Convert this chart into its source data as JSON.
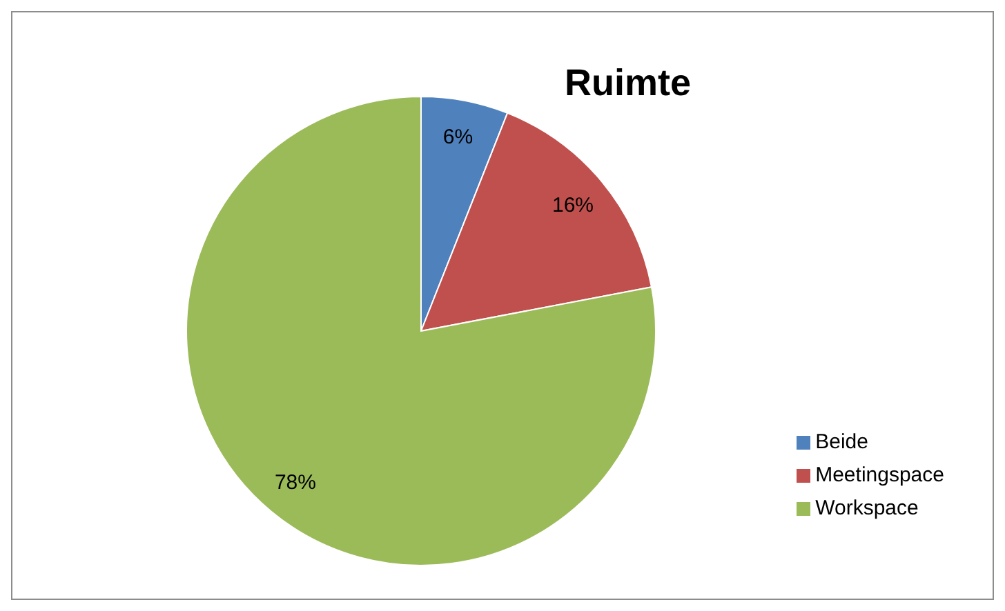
{
  "chart_data": {
    "type": "pie",
    "title": "Ruimte",
    "categories": [
      "Beide",
      "Meetingspace",
      "Workspace"
    ],
    "values": [
      6,
      16,
      78
    ],
    "value_labels": [
      "6%",
      "16%",
      "78%"
    ],
    "colors": [
      "#4f81bd",
      "#c0504d",
      "#9bbb59"
    ],
    "legend": "right"
  }
}
